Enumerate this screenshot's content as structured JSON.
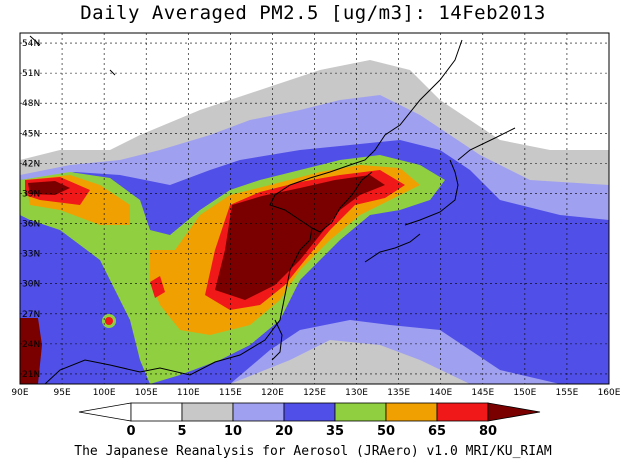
{
  "title": "Daily Averaged PM2.5 [ug/m3]: 14Feb2013",
  "footer": "The Japanese Reanalysis for Aerosol (JRAero) v1.0 MRI/KU_RIAM",
  "map": {
    "lon_range": [
      90,
      160
    ],
    "lat_range": [
      20,
      55
    ],
    "lon_ticks": [
      "90E",
      "95E",
      "100E",
      "105E",
      "110E",
      "115E",
      "120E",
      "125E",
      "130E",
      "135E",
      "140E",
      "145E",
      "150E",
      "155E",
      "160E"
    ],
    "lat_ticks": [
      "21N",
      "24N",
      "27N",
      "30N",
      "33N",
      "36N",
      "39N",
      "42N",
      "45N",
      "48N",
      "51N",
      "54N"
    ]
  },
  "colorbar": {
    "levels": [
      "0",
      "5",
      "10",
      "20",
      "35",
      "50",
      "65",
      "80"
    ],
    "colors": [
      "#ffffff",
      "#ffffff",
      "#c8c8c8",
      "#a0a0f0",
      "#5050e8",
      "#90d040",
      "#f0a000",
      "#f01818",
      "#7a0000"
    ]
  }
}
